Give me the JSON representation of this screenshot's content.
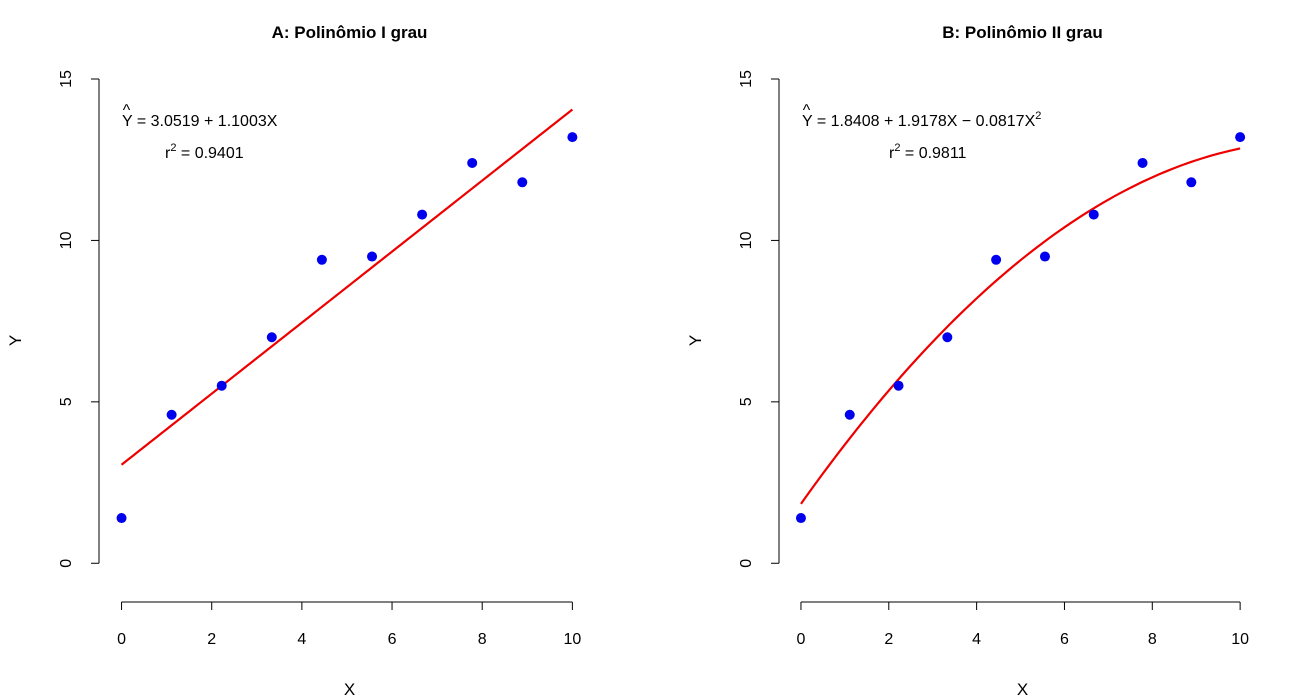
{
  "colors": {
    "points": "#0000ee",
    "fit_line": "#ee0000",
    "axes": "#000000"
  },
  "chart_data": [
    {
      "type": "scatter",
      "title": "A: Polinômio I grau",
      "xlabel": "X",
      "ylabel": "Y",
      "xlim": [
        -0.5,
        11.5
      ],
      "ylim": [
        -1.2,
        15
      ],
      "xticks": [
        0,
        2,
        4,
        6,
        8,
        10
      ],
      "yticks": [
        0,
        5,
        10,
        15
      ],
      "grid": false,
      "points": {
        "x": [
          0,
          1.111,
          2.222,
          3.333,
          4.444,
          5.556,
          6.667,
          7.778,
          8.889,
          10
        ],
        "y": [
          1.4,
          4.6,
          5.5,
          7.0,
          9.4,
          9.5,
          10.8,
          12.4,
          11.8,
          13.2
        ]
      },
      "fit": {
        "degree": 1,
        "coefficients": [
          3.0519,
          1.1003
        ],
        "x_range": [
          0,
          10
        ]
      },
      "equation": {
        "lhs": "Y",
        "hat": "^",
        "rhs": "= 3.0519 + 1.1003X",
        "r2_prefix": "r",
        "r2_exp": "2",
        "r2_rhs": "= 0.9401"
      }
    },
    {
      "type": "scatter",
      "title": "B: Polinômio II grau",
      "xlabel": "X",
      "ylabel": "Y",
      "xlim": [
        -0.5,
        11.5
      ],
      "ylim": [
        -1.2,
        15
      ],
      "xticks": [
        0,
        2,
        4,
        6,
        8,
        10
      ],
      "yticks": [
        0,
        5,
        10,
        15
      ],
      "grid": false,
      "points": {
        "x": [
          0,
          1.111,
          2.222,
          3.333,
          4.444,
          5.556,
          6.667,
          7.778,
          8.889,
          10
        ],
        "y": [
          1.4,
          4.6,
          5.5,
          7.0,
          9.4,
          9.5,
          10.8,
          12.4,
          11.8,
          13.2
        ]
      },
      "fit": {
        "degree": 2,
        "coefficients": [
          1.8408,
          1.9178,
          -0.0817
        ],
        "x_range": [
          0,
          10
        ]
      },
      "equation": {
        "lhs": "Y",
        "hat": "^",
        "rhs": "= 1.8408 + 1.9178X − 0.0817X",
        "rhs_exp": "2",
        "r2_prefix": "r",
        "r2_exp": "2",
        "r2_rhs": "= 0.9811"
      }
    }
  ]
}
